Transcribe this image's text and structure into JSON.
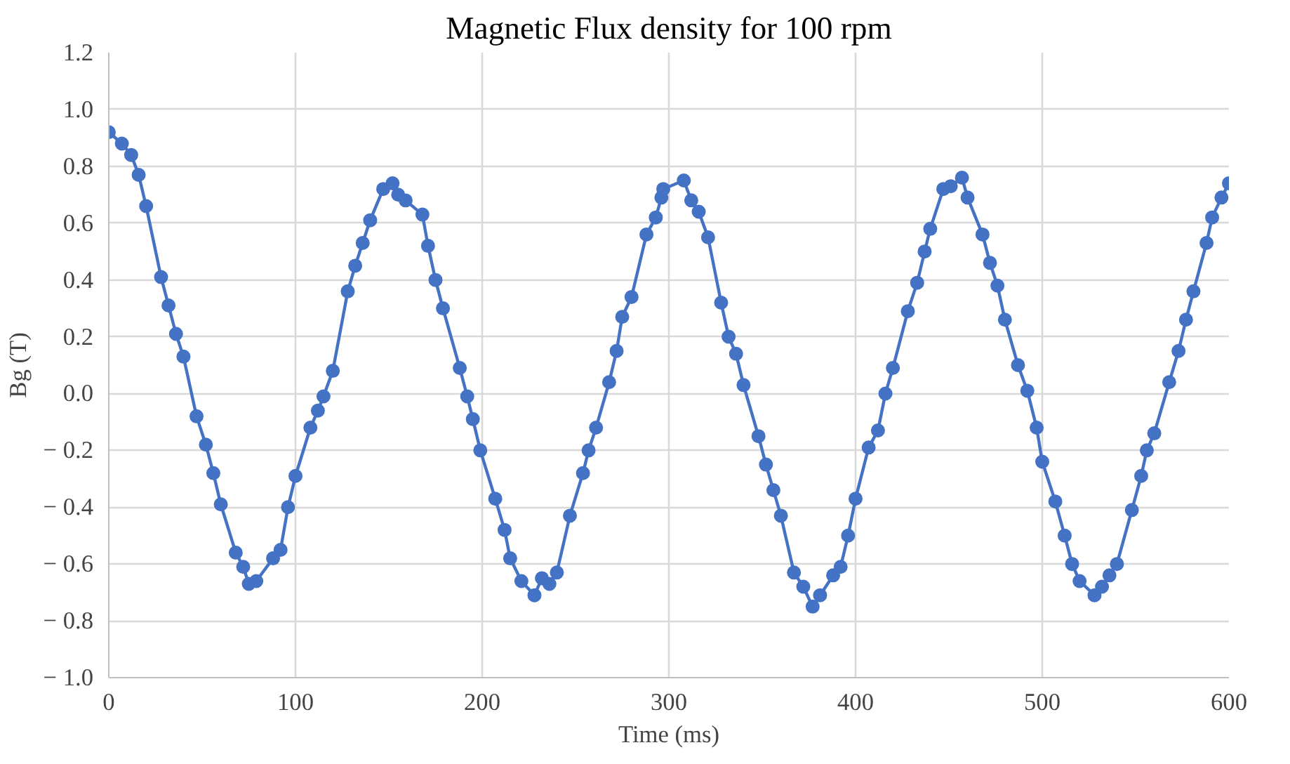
{
  "chart_data": {
    "type": "line",
    "title": "Magnetic Flux density for 100 rpm",
    "xlabel": "Time (ms)",
    "ylabel": "Bg (T)",
    "x": [
      0,
      7,
      12,
      16,
      20,
      28,
      32,
      36,
      40,
      47,
      52,
      56,
      60,
      68,
      72,
      75,
      79,
      88,
      92,
      96,
      100,
      108,
      112,
      115,
      120,
      128,
      132,
      136,
      140,
      147,
      152,
      155,
      159,
      168,
      171,
      175,
      179,
      188,
      192,
      195,
      199,
      207,
      212,
      215,
      221,
      228,
      232,
      236,
      240,
      247,
      254,
      257,
      261,
      268,
      272,
      275,
      280,
      288,
      293,
      296,
      297,
      308,
      312,
      316,
      321,
      328,
      332,
      336,
      340,
      348,
      352,
      356,
      360,
      367,
      372,
      377,
      381,
      388,
      392,
      396,
      400,
      407,
      412,
      416,
      420,
      428,
      433,
      437,
      440,
      447,
      451,
      457,
      460,
      468,
      472,
      476,
      480,
      487,
      492,
      497,
      500,
      507,
      512,
      516,
      520,
      528,
      532,
      536,
      540,
      548,
      553,
      556,
      560,
      568,
      573,
      577,
      581,
      588,
      591,
      596,
      600
    ],
    "series": [
      {
        "color": "#4472c4",
        "values": [
          0.92,
          0.88,
          0.84,
          0.77,
          0.66,
          0.41,
          0.31,
          0.21,
          0.13,
          -0.08,
          -0.18,
          -0.28,
          -0.39,
          -0.56,
          -0.61,
          -0.67,
          -0.66,
          -0.58,
          -0.55,
          -0.4,
          -0.29,
          -0.12,
          -0.06,
          -0.01,
          0.08,
          0.36,
          0.45,
          0.53,
          0.61,
          0.72,
          0.74,
          0.7,
          0.68,
          0.63,
          0.52,
          0.4,
          0.3,
          0.09,
          -0.01,
          -0.09,
          -0.2,
          -0.37,
          -0.48,
          -0.58,
          -0.66,
          -0.71,
          -0.65,
          -0.67,
          -0.63,
          -0.43,
          -0.28,
          -0.2,
          -0.12,
          0.04,
          0.15,
          0.27,
          0.34,
          0.56,
          0.62,
          0.69,
          0.72,
          0.75,
          0.68,
          0.64,
          0.55,
          0.32,
          0.2,
          0.14,
          0.03,
          -0.15,
          -0.25,
          -0.34,
          -0.43,
          -0.63,
          -0.68,
          -0.75,
          -0.71,
          -0.64,
          -0.61,
          -0.5,
          -0.37,
          -0.19,
          -0.13,
          0.0,
          0.09,
          0.29,
          0.39,
          0.5,
          0.58,
          0.72,
          0.73,
          0.76,
          0.69,
          0.56,
          0.46,
          0.38,
          0.26,
          0.1,
          0.01,
          -0.12,
          -0.24,
          -0.38,
          -0.5,
          -0.6,
          -0.66,
          -0.71,
          -0.68,
          -0.64,
          -0.6,
          -0.41,
          -0.29,
          -0.2,
          -0.14,
          0.04,
          0.15,
          0.26,
          0.36,
          0.53,
          0.62,
          0.69,
          0.74
        ]
      }
    ],
    "xlim": [
      0,
      600
    ],
    "xticks": [
      0,
      100,
      200,
      300,
      400,
      500,
      600
    ],
    "ylim": [
      -1.0,
      1.2
    ],
    "yticks": [
      {
        "value": -1.0,
        "label": "− 1.0"
      },
      {
        "value": -0.8,
        "label": "− 0.8"
      },
      {
        "value": -0.6,
        "label": "− 0.6"
      },
      {
        "value": -0.4,
        "label": "− 0.4"
      },
      {
        "value": -0.2,
        "label": "− 0.2"
      },
      {
        "value": 0.0,
        "label": "0.0"
      },
      {
        "value": 0.2,
        "label": "0.2"
      },
      {
        "value": 0.4,
        "label": "0.4"
      },
      {
        "value": 0.6,
        "label": "0.6"
      },
      {
        "value": 0.8,
        "label": "0.8"
      },
      {
        "value": 1.0,
        "label": "1.0"
      },
      {
        "value": 1.2,
        "label": "1.2"
      }
    ],
    "grid": true,
    "marker": "circle",
    "line_style": "solid"
  }
}
